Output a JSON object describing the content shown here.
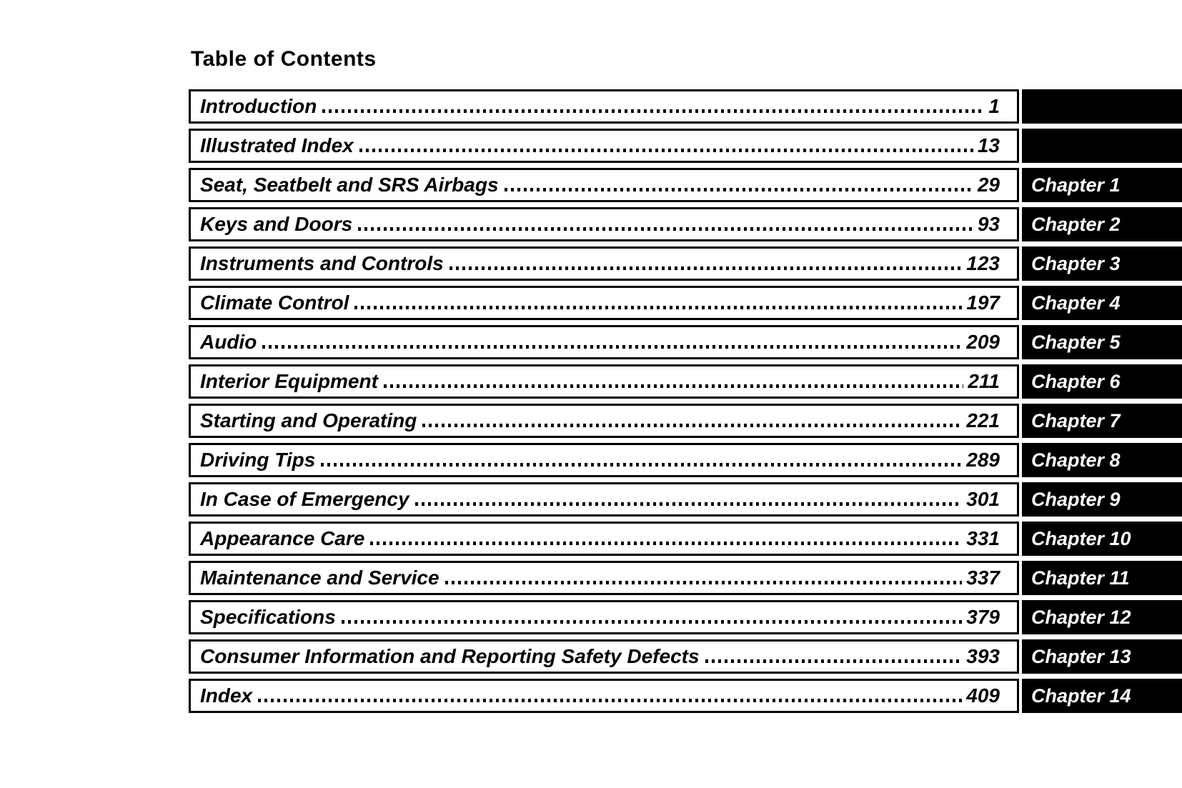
{
  "page": {
    "title": "Table of Contents"
  },
  "colors": {
    "page_bg": "#ffffff",
    "text": "#000000",
    "row_border": "#000000",
    "chapter_tab_bg": "#000000",
    "chapter_tab_text": "#ffffff"
  },
  "toc": {
    "rows": [
      {
        "title": "Introduction",
        "page": "1",
        "chapter": ""
      },
      {
        "title": "Illustrated Index",
        "page": "13",
        "chapter": ""
      },
      {
        "title": "Seat, Seatbelt and SRS Airbags",
        "page": "29",
        "chapter": "Chapter 1"
      },
      {
        "title": "Keys and Doors",
        "page": "93",
        "chapter": "Chapter 2"
      },
      {
        "title": "Instruments and Controls",
        "page": "123",
        "chapter": "Chapter 3"
      },
      {
        "title": "Climate Control",
        "page": "197",
        "chapter": "Chapter 4"
      },
      {
        "title": "Audio",
        "page": "209",
        "chapter": "Chapter 5"
      },
      {
        "title": "Interior Equipment",
        "page": "211",
        "chapter": "Chapter 6"
      },
      {
        "title": "Starting and Operating",
        "page": "221",
        "chapter": "Chapter 7"
      },
      {
        "title": "Driving Tips",
        "page": "289",
        "chapter": "Chapter 8"
      },
      {
        "title": "In Case of Emergency",
        "page": "301",
        "chapter": "Chapter 9"
      },
      {
        "title": "Appearance Care",
        "page": "331",
        "chapter": "Chapter 10"
      },
      {
        "title": "Maintenance and Service",
        "page": "337",
        "chapter": "Chapter 11"
      },
      {
        "title": "Specifications",
        "page": "379",
        "chapter": "Chapter 12"
      },
      {
        "title": "Consumer Information and Reporting Safety Defects",
        "page": "393",
        "chapter": "Chapter 13"
      },
      {
        "title": "Index",
        "page": "409",
        "chapter": "Chapter 14"
      }
    ]
  }
}
